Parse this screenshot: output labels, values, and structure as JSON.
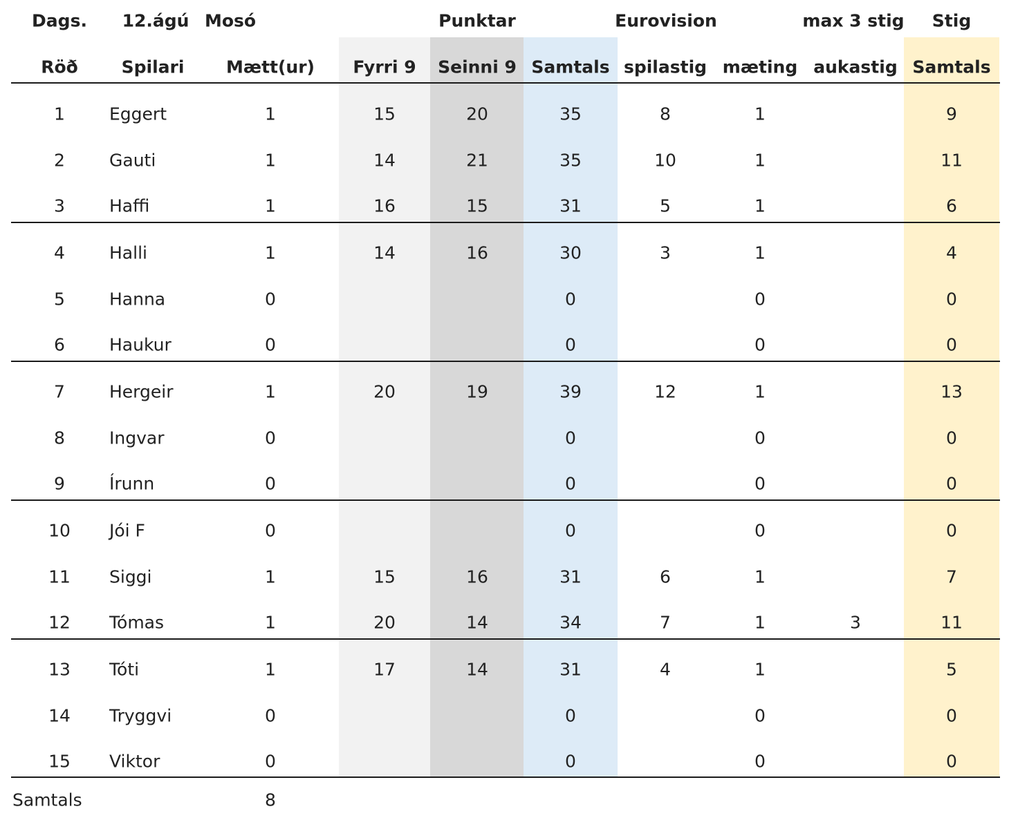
{
  "header_top": {
    "dags": "Dags.",
    "date": "12.ágú",
    "course": "Mosó",
    "punktar": "Punktar",
    "eurovision": "Eurovision",
    "max": "max 3 stig",
    "stig": "Stig"
  },
  "header_cols": {
    "rod": "Röð",
    "spilari": "Spilari",
    "maett": "Mætt(ur)",
    "fyrri": "Fyrri 9",
    "seinni": "Seinni 9",
    "samtals": "Samtals",
    "spilastig": "spilastig",
    "maeting": "mæting",
    "aukastig": "aukastig",
    "stig_samtals": "Samtals"
  },
  "rows": [
    {
      "rod": "1",
      "name": "Eggert",
      "maett": "1",
      "fyrri": "15",
      "seinni": "20",
      "samtals": "35",
      "spilastig": "8",
      "maeting": "1",
      "aukastig": "",
      "stig": "9"
    },
    {
      "rod": "2",
      "name": "Gauti",
      "maett": "1",
      "fyrri": "14",
      "seinni": "21",
      "samtals": "35",
      "spilastig": "10",
      "maeting": "1",
      "aukastig": "",
      "stig": "11"
    },
    {
      "rod": "3",
      "name": "Haffi",
      "maett": "1",
      "fyrri": "16",
      "seinni": "15",
      "samtals": "31",
      "spilastig": "5",
      "maeting": "1",
      "aukastig": "",
      "stig": "6"
    },
    {
      "rod": "4",
      "name": "Halli",
      "maett": "1",
      "fyrri": "14",
      "seinni": "16",
      "samtals": "30",
      "spilastig": "3",
      "maeting": "1",
      "aukastig": "",
      "stig": "4"
    },
    {
      "rod": "5",
      "name": "Hanna",
      "maett": "0",
      "fyrri": "",
      "seinni": "",
      "samtals": "0",
      "spilastig": "",
      "maeting": "0",
      "aukastig": "",
      "stig": "0"
    },
    {
      "rod": "6",
      "name": "Haukur",
      "maett": "0",
      "fyrri": "",
      "seinni": "",
      "samtals": "0",
      "spilastig": "",
      "maeting": "0",
      "aukastig": "",
      "stig": "0"
    },
    {
      "rod": "7",
      "name": "Hergeir",
      "maett": "1",
      "fyrri": "20",
      "seinni": "19",
      "samtals": "39",
      "spilastig": "12",
      "maeting": "1",
      "aukastig": "",
      "stig": "13"
    },
    {
      "rod": "8",
      "name": "Ingvar",
      "maett": "0",
      "fyrri": "",
      "seinni": "",
      "samtals": "0",
      "spilastig": "",
      "maeting": "0",
      "aukastig": "",
      "stig": "0"
    },
    {
      "rod": "9",
      "name": "Írunn",
      "maett": "0",
      "fyrri": "",
      "seinni": "",
      "samtals": "0",
      "spilastig": "",
      "maeting": "0",
      "aukastig": "",
      "stig": "0"
    },
    {
      "rod": "10",
      "name": "Jói F",
      "maett": "0",
      "fyrri": "",
      "seinni": "",
      "samtals": "0",
      "spilastig": "",
      "maeting": "0",
      "aukastig": "",
      "stig": "0"
    },
    {
      "rod": "11",
      "name": "Siggi",
      "maett": "1",
      "fyrri": "15",
      "seinni": "16",
      "samtals": "31",
      "spilastig": "6",
      "maeting": "1",
      "aukastig": "",
      "stig": "7"
    },
    {
      "rod": "12",
      "name": "Tómas",
      "maett": "1",
      "fyrri": "20",
      "seinni": "14",
      "samtals": "34",
      "spilastig": "7",
      "maeting": "1",
      "aukastig": "3",
      "stig": "11"
    },
    {
      "rod": "13",
      "name": "Tóti",
      "maett": "1",
      "fyrri": "17",
      "seinni": "14",
      "samtals": "31",
      "spilastig": "4",
      "maeting": "1",
      "aukastig": "",
      "stig": "5"
    },
    {
      "rod": "14",
      "name": "Tryggvi",
      "maett": "0",
      "fyrri": "",
      "seinni": "",
      "samtals": "0",
      "spilastig": "",
      "maeting": "0",
      "aukastig": "",
      "stig": "0"
    },
    {
      "rod": "15",
      "name": "Viktor",
      "maett": "0",
      "fyrri": "",
      "seinni": "",
      "samtals": "0",
      "spilastig": "",
      "maeting": "0",
      "aukastig": "",
      "stig": "0"
    }
  ],
  "footer": {
    "label": "Samtals",
    "maett_total": "8"
  },
  "colors": {
    "fyrri_band": "#f2f2f2",
    "seinni_band": "#d8d8d8",
    "samtals_band": "#ddebf7",
    "stig_band": "#fff2cc"
  }
}
